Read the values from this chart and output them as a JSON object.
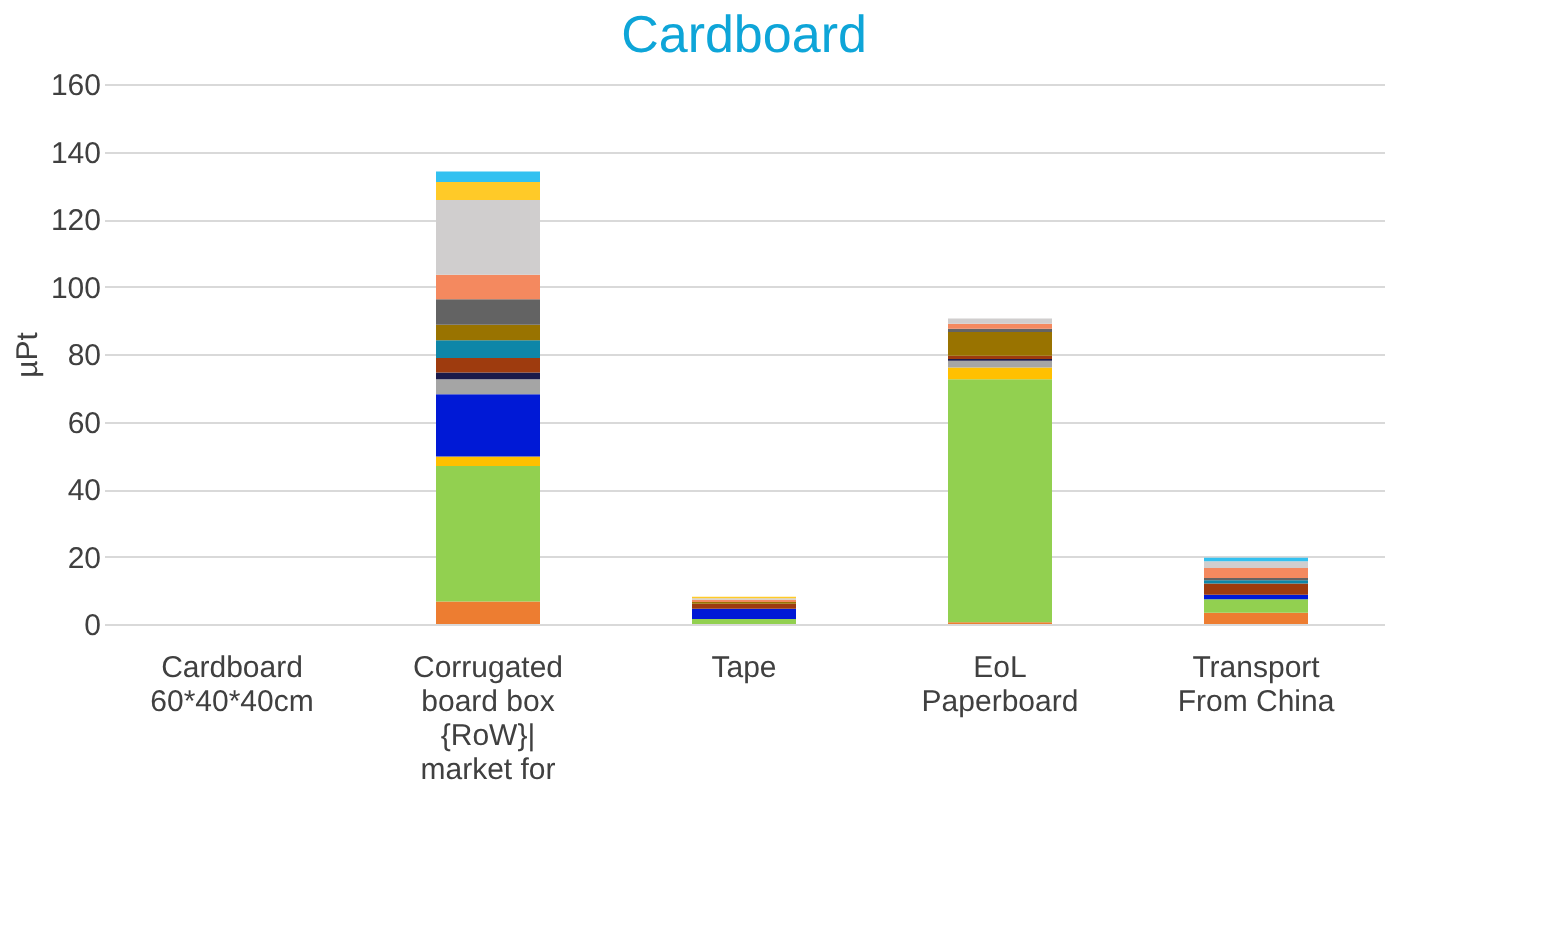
{
  "chart_data": {
    "type": "bar",
    "stacked": true,
    "title": "Cardboard",
    "ylabel": "µPt",
    "categories": [
      "Cardboard 60*40*40cm",
      "Corrugated board box {RoW}| market for",
      "Tape",
      "EoL Paperboard",
      "Transport From China"
    ],
    "series": [
      {
        "color": "#ed7d31",
        "values": [
          null,
          6.7,
          null,
          0.5,
          3.3
        ]
      },
      {
        "color": "#92d050",
        "values": [
          null,
          40.1,
          1.5,
          72,
          4
        ]
      },
      {
        "color": "#ffc000",
        "values": [
          null,
          2.8,
          null,
          3.5,
          null
        ]
      },
      {
        "color": "#0019d6",
        "values": [
          null,
          18.5,
          3,
          null,
          1.4
        ]
      },
      {
        "color": "#a5a5a5",
        "values": [
          null,
          4.4,
          null,
          2,
          null
        ]
      },
      {
        "color": "#1a1a4a",
        "values": [
          null,
          2,
          null,
          0.5,
          null
        ]
      },
      {
        "color": "#9e3b0e",
        "values": [
          null,
          4.3,
          1.5,
          1,
          3.3
        ]
      },
      {
        "color": "#0e86a8",
        "values": [
          null,
          5.3,
          null,
          null,
          1
        ]
      },
      {
        "color": "#997300",
        "values": [
          null,
          4.6,
          0.5,
          7,
          null
        ]
      },
      {
        "color": "#636363",
        "values": [
          null,
          7.5,
          null,
          1,
          0.6
        ]
      },
      {
        "color": "#f4895f",
        "values": [
          null,
          7.3,
          0.7,
          1.5,
          3
        ]
      },
      {
        "color": "#d0cece",
        "values": [
          null,
          22.1,
          0.4,
          1.5,
          2
        ]
      },
      {
        "color": "#ffca28",
        "values": [
          null,
          5.4,
          0.5,
          null,
          null
        ]
      },
      {
        "color": "#33c1f0",
        "values": [
          null,
          3.1,
          null,
          null,
          1
        ]
      }
    ],
    "ylim": [
      0,
      160
    ],
    "yticks": [
      0,
      20,
      40,
      60,
      80,
      100,
      120,
      140,
      160
    ],
    "grid": "y",
    "legend": false
  }
}
